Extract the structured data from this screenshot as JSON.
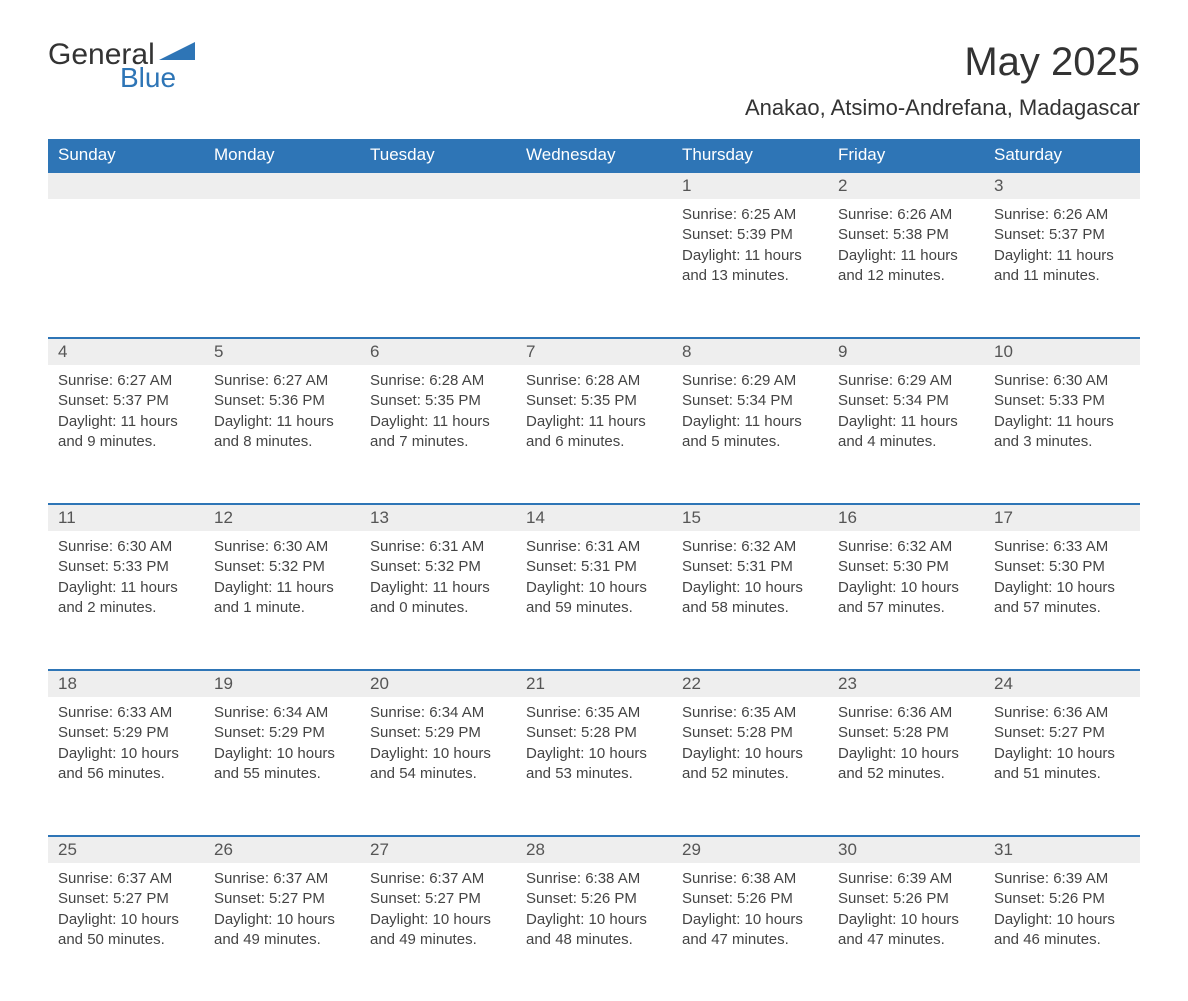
{
  "logo": {
    "word1": "General",
    "word2": "Blue",
    "accent_color": "#2e75b6"
  },
  "title": "May 2025",
  "location": "Anakao, Atsimo-Andrefana, Madagascar",
  "colors": {
    "header_bg": "#2e75b6",
    "header_text": "#ffffff",
    "daynum_bg": "#eeeeee",
    "daynum_border": "#2e75b6",
    "body_bg": "#ffffff",
    "text": "#333333"
  },
  "fonts": {
    "title_size_pt": 30,
    "location_size_pt": 17,
    "header_size_pt": 13,
    "cell_size_pt": 11
  },
  "columns": [
    "Sunday",
    "Monday",
    "Tuesday",
    "Wednesday",
    "Thursday",
    "Friday",
    "Saturday"
  ],
  "weeks": [
    [
      null,
      null,
      null,
      null,
      {
        "n": "1",
        "sr": "Sunrise: 6:25 AM",
        "ss": "Sunset: 5:39 PM",
        "dl": "Daylight: 11 hours and 13 minutes."
      },
      {
        "n": "2",
        "sr": "Sunrise: 6:26 AM",
        "ss": "Sunset: 5:38 PM",
        "dl": "Daylight: 11 hours and 12 minutes."
      },
      {
        "n": "3",
        "sr": "Sunrise: 6:26 AM",
        "ss": "Sunset: 5:37 PM",
        "dl": "Daylight: 11 hours and 11 minutes."
      }
    ],
    [
      {
        "n": "4",
        "sr": "Sunrise: 6:27 AM",
        "ss": "Sunset: 5:37 PM",
        "dl": "Daylight: 11 hours and 9 minutes."
      },
      {
        "n": "5",
        "sr": "Sunrise: 6:27 AM",
        "ss": "Sunset: 5:36 PM",
        "dl": "Daylight: 11 hours and 8 minutes."
      },
      {
        "n": "6",
        "sr": "Sunrise: 6:28 AM",
        "ss": "Sunset: 5:35 PM",
        "dl": "Daylight: 11 hours and 7 minutes."
      },
      {
        "n": "7",
        "sr": "Sunrise: 6:28 AM",
        "ss": "Sunset: 5:35 PM",
        "dl": "Daylight: 11 hours and 6 minutes."
      },
      {
        "n": "8",
        "sr": "Sunrise: 6:29 AM",
        "ss": "Sunset: 5:34 PM",
        "dl": "Daylight: 11 hours and 5 minutes."
      },
      {
        "n": "9",
        "sr": "Sunrise: 6:29 AM",
        "ss": "Sunset: 5:34 PM",
        "dl": "Daylight: 11 hours and 4 minutes."
      },
      {
        "n": "10",
        "sr": "Sunrise: 6:30 AM",
        "ss": "Sunset: 5:33 PM",
        "dl": "Daylight: 11 hours and 3 minutes."
      }
    ],
    [
      {
        "n": "11",
        "sr": "Sunrise: 6:30 AM",
        "ss": "Sunset: 5:33 PM",
        "dl": "Daylight: 11 hours and 2 minutes."
      },
      {
        "n": "12",
        "sr": "Sunrise: 6:30 AM",
        "ss": "Sunset: 5:32 PM",
        "dl": "Daylight: 11 hours and 1 minute."
      },
      {
        "n": "13",
        "sr": "Sunrise: 6:31 AM",
        "ss": "Sunset: 5:32 PM",
        "dl": "Daylight: 11 hours and 0 minutes."
      },
      {
        "n": "14",
        "sr": "Sunrise: 6:31 AM",
        "ss": "Sunset: 5:31 PM",
        "dl": "Daylight: 10 hours and 59 minutes."
      },
      {
        "n": "15",
        "sr": "Sunrise: 6:32 AM",
        "ss": "Sunset: 5:31 PM",
        "dl": "Daylight: 10 hours and 58 minutes."
      },
      {
        "n": "16",
        "sr": "Sunrise: 6:32 AM",
        "ss": "Sunset: 5:30 PM",
        "dl": "Daylight: 10 hours and 57 minutes."
      },
      {
        "n": "17",
        "sr": "Sunrise: 6:33 AM",
        "ss": "Sunset: 5:30 PM",
        "dl": "Daylight: 10 hours and 57 minutes."
      }
    ],
    [
      {
        "n": "18",
        "sr": "Sunrise: 6:33 AM",
        "ss": "Sunset: 5:29 PM",
        "dl": "Daylight: 10 hours and 56 minutes."
      },
      {
        "n": "19",
        "sr": "Sunrise: 6:34 AM",
        "ss": "Sunset: 5:29 PM",
        "dl": "Daylight: 10 hours and 55 minutes."
      },
      {
        "n": "20",
        "sr": "Sunrise: 6:34 AM",
        "ss": "Sunset: 5:29 PM",
        "dl": "Daylight: 10 hours and 54 minutes."
      },
      {
        "n": "21",
        "sr": "Sunrise: 6:35 AM",
        "ss": "Sunset: 5:28 PM",
        "dl": "Daylight: 10 hours and 53 minutes."
      },
      {
        "n": "22",
        "sr": "Sunrise: 6:35 AM",
        "ss": "Sunset: 5:28 PM",
        "dl": "Daylight: 10 hours and 52 minutes."
      },
      {
        "n": "23",
        "sr": "Sunrise: 6:36 AM",
        "ss": "Sunset: 5:28 PM",
        "dl": "Daylight: 10 hours and 52 minutes."
      },
      {
        "n": "24",
        "sr": "Sunrise: 6:36 AM",
        "ss": "Sunset: 5:27 PM",
        "dl": "Daylight: 10 hours and 51 minutes."
      }
    ],
    [
      {
        "n": "25",
        "sr": "Sunrise: 6:37 AM",
        "ss": "Sunset: 5:27 PM",
        "dl": "Daylight: 10 hours and 50 minutes."
      },
      {
        "n": "26",
        "sr": "Sunrise: 6:37 AM",
        "ss": "Sunset: 5:27 PM",
        "dl": "Daylight: 10 hours and 49 minutes."
      },
      {
        "n": "27",
        "sr": "Sunrise: 6:37 AM",
        "ss": "Sunset: 5:27 PM",
        "dl": "Daylight: 10 hours and 49 minutes."
      },
      {
        "n": "28",
        "sr": "Sunrise: 6:38 AM",
        "ss": "Sunset: 5:26 PM",
        "dl": "Daylight: 10 hours and 48 minutes."
      },
      {
        "n": "29",
        "sr": "Sunrise: 6:38 AM",
        "ss": "Sunset: 5:26 PM",
        "dl": "Daylight: 10 hours and 47 minutes."
      },
      {
        "n": "30",
        "sr": "Sunrise: 6:39 AM",
        "ss": "Sunset: 5:26 PM",
        "dl": "Daylight: 10 hours and 47 minutes."
      },
      {
        "n": "31",
        "sr": "Sunrise: 6:39 AM",
        "ss": "Sunset: 5:26 PM",
        "dl": "Daylight: 10 hours and 46 minutes."
      }
    ]
  ]
}
